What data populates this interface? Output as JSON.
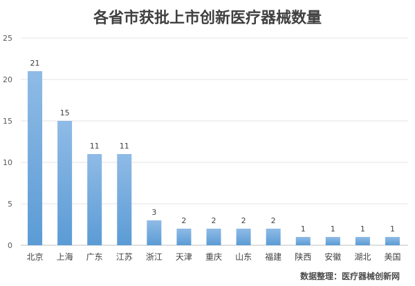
{
  "chart_data": {
    "type": "bar",
    "title": "各省市获批上市创新医疗器械数量",
    "categories": [
      "北京",
      "上海",
      "广东",
      "江苏",
      "浙江",
      "天津",
      "重庆",
      "山东",
      "福建",
      "陕西",
      "安徽",
      "湖北",
      "美国"
    ],
    "values": [
      21,
      15,
      11,
      11,
      3,
      2,
      2,
      2,
      2,
      1,
      1,
      1,
      1
    ],
    "y_ticks": [
      "0",
      "5",
      "10",
      "15",
      "20",
      "25"
    ],
    "ylim": [
      0,
      25
    ],
    "grid": true,
    "legend": "none",
    "bar_color": "#5b9bd5",
    "bar_color_light": "#8fbbe6"
  },
  "source_note": "数据整理：医疗器械创新网"
}
